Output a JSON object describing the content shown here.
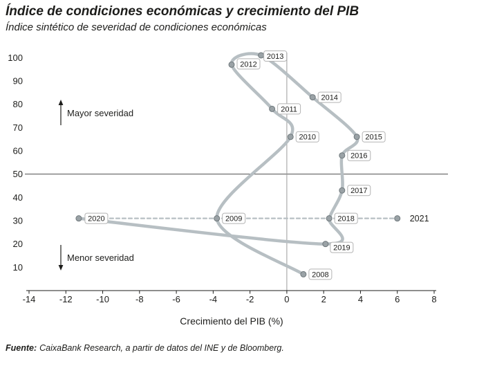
{
  "header": {
    "title": "Índice de condiciones económicas y crecimiento del PIB",
    "subtitle": "Índice sintético de severidad de condiciones económicas"
  },
  "footer": {
    "source_label": "Fuente:",
    "source_text": "CaixaBank Research, a partir de datos del INE y de Bloomberg."
  },
  "chart_data": {
    "type": "scatter",
    "xlabel": "Crecimiento del PIB (%)",
    "xlim": [
      -14,
      8
    ],
    "ylim": [
      0,
      105
    ],
    "x_ticks": [
      -14,
      -12,
      -10,
      -8,
      -6,
      -4,
      -2,
      0,
      2,
      4,
      6,
      8
    ],
    "y_ticks": [
      100,
      90,
      80,
      70,
      60,
      50,
      40,
      30,
      20,
      10
    ],
    "reference_lines": {
      "horizontal_y": 50,
      "vertical_x": 0
    },
    "annotations": [
      {
        "text": "Mayor severidad",
        "direction": "up"
      },
      {
        "text": "Menor severidad",
        "direction": "down"
      }
    ],
    "points": [
      {
        "label": "2008",
        "x": 0.9,
        "y": 7
      },
      {
        "label": "2009",
        "x": -3.8,
        "y": 31
      },
      {
        "label": "2010",
        "x": 0.2,
        "y": 66
      },
      {
        "label": "2011",
        "x": -0.8,
        "y": 78
      },
      {
        "label": "2012",
        "x": -3.0,
        "y": 97
      },
      {
        "label": "2013",
        "x": -1.4,
        "y": 101
      },
      {
        "label": "2014",
        "x": 1.4,
        "y": 83
      },
      {
        "label": "2015",
        "x": 3.8,
        "y": 66
      },
      {
        "label": "2016",
        "x": 3.0,
        "y": 58
      },
      {
        "label": "2017",
        "x": 3.0,
        "y": 43
      },
      {
        "label": "2018",
        "x": 2.3,
        "y": 31
      },
      {
        "label": "2019",
        "x": 2.1,
        "y": 20
      },
      {
        "label": "2020",
        "x": -11.3,
        "y": 31
      },
      {
        "label": "2021",
        "x": 6.0,
        "y": 31
      }
    ],
    "paths": [
      {
        "name": "historical",
        "style": "solid",
        "labels": [
          "2008",
          "2009",
          "2010",
          "2011",
          "2012",
          "2013",
          "2014",
          "2015",
          "2016",
          "2017",
          "2018",
          "2019",
          "2020"
        ]
      },
      {
        "name": "forecast",
        "style": "dashed",
        "labels": [
          "2020",
          "2021"
        ]
      }
    ],
    "colors": {
      "line": "#b7bfc3",
      "marker": "#9aa2a6",
      "marker_border": "#6f787c",
      "text": "#1d1d1b",
      "label_box_border": "#b3b3b3",
      "axis": "#1d1d1b",
      "ref_line_h": "#4d4d4d",
      "ref_line_v": "#9a9a9a"
    }
  }
}
